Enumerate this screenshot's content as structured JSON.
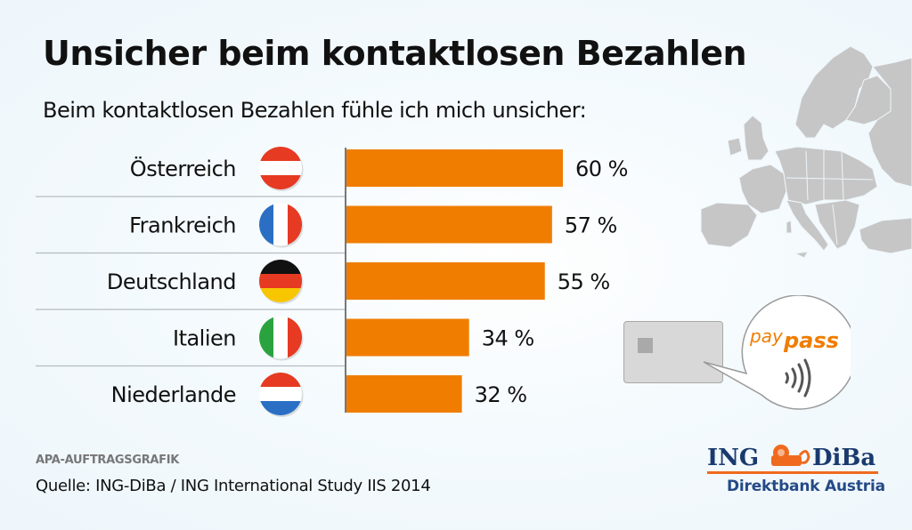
{
  "title": "Unsicher beim kontaktlosen Bezahlen",
  "subtitle": "Beim kontaktlosen Bezahlen fühle ich mich unsicher:",
  "chart_data": {
    "type": "bar",
    "orientation": "horizontal",
    "title": "Unsicher beim kontaktlosen Bezahlen",
    "subtitle": "Beim kontaktlosen Bezahlen fühle ich mich unsicher:",
    "categories": [
      "Österreich",
      "Frankreich",
      "Deutschland",
      "Italien",
      "Niederlande"
    ],
    "values": [
      60,
      57,
      55,
      34,
      32
    ],
    "value_labels": [
      "60 %",
      "57 %",
      "55 %",
      "34 %",
      "32 %"
    ],
    "unit": "%",
    "xlim": [
      0,
      100
    ],
    "xlabel": "",
    "ylabel": "",
    "grid": false,
    "bar_color": "#f07d00",
    "flags": [
      {
        "country": "Österreich",
        "icon": "austria-flag-icon",
        "stripes": "horizontal",
        "colors": [
          "#e63a22",
          "#ffffff",
          "#e63a22"
        ]
      },
      {
        "country": "Frankreich",
        "icon": "france-flag-icon",
        "stripes": "vertical",
        "colors": [
          "#2a6fc4",
          "#ffffff",
          "#e63a22"
        ]
      },
      {
        "country": "Deutschland",
        "icon": "germany-flag-icon",
        "stripes": "horizontal",
        "colors": [
          "#111111",
          "#e63a22",
          "#f7c600"
        ]
      },
      {
        "country": "Italien",
        "icon": "italy-flag-icon",
        "stripes": "vertical",
        "colors": [
          "#2aa33f",
          "#ffffff",
          "#e63a22"
        ]
      },
      {
        "country": "Niederlande",
        "icon": "netherlands-flag-icon",
        "stripes": "horizontal",
        "colors": [
          "#e63a22",
          "#ffffff",
          "#2a6fc4"
        ]
      }
    ]
  },
  "illustration": {
    "map": "europe-map-icon",
    "card": "payment-card-icon",
    "bubble_text_a": "pay",
    "bubble_text_b": "pass",
    "contactless": "contactless-icon",
    "accent": "#f07d00"
  },
  "footer": {
    "credit": "APA-AUFTRAGSGRAFIK",
    "source": "Quelle: ING-DiBa / ING International Study IIS 2014"
  },
  "logo": {
    "left": "ING",
    "right": "DiBa",
    "tagline": "Direktbank Austria",
    "brand_blue": "#1a3a6e",
    "brand_orange": "#f06a1e"
  }
}
